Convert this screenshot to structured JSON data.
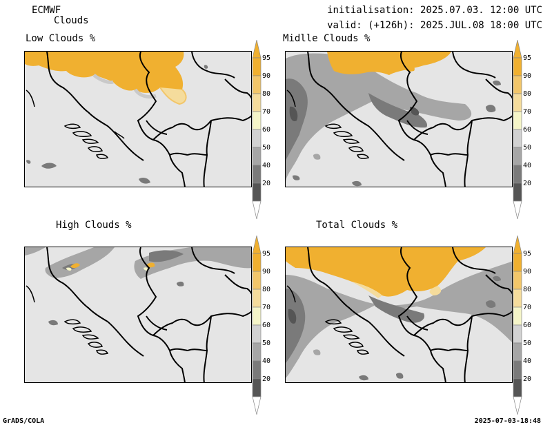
{
  "header": {
    "model": "ECMWF",
    "product": "Clouds",
    "init": "initialisation: 2025.07.03. 12:00 UTC",
    "valid": "valid: (+126h): 2025.JUL.08 18:00 UTC"
  },
  "panels": [
    {
      "title": "Low Clouds %"
    },
    {
      "title": "Midlle Clouds %"
    },
    {
      "title": "High Clouds %"
    },
    {
      "title": "Total Clouds %"
    }
  ],
  "colorbar": {
    "levels": [
      "95",
      "90",
      "80",
      "70",
      "60",
      "50",
      "40",
      "20"
    ],
    "colors": {
      "95": "#f0b030",
      "90": "#f2c66a",
      "80": "#f5dc9c",
      "70": "#f5f5c8",
      "60": "#d2d2d2",
      "50": "#a6a6a6",
      "40": "#7a7a7a",
      "20": "#555555"
    },
    "top_color": "#f0b030",
    "bottom_color": "#ffffff"
  },
  "footer": {
    "left": "GrADS/COLA",
    "right": "2025-07-03-18:48"
  },
  "map_colors": {
    "background": "#e5e5e5",
    "border": "#000000"
  }
}
